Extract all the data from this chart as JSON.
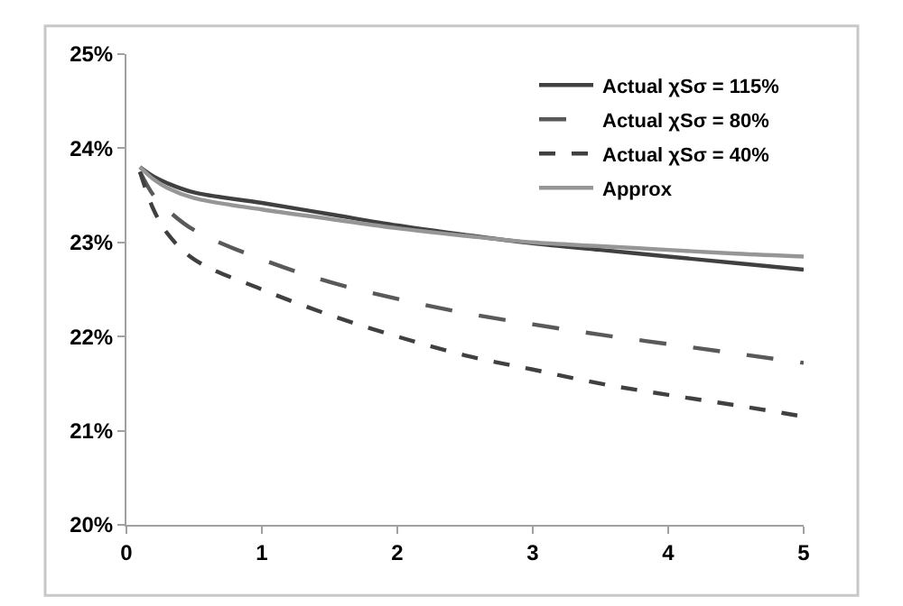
{
  "chart_data": {
    "type": "line",
    "x": [
      0.1,
      0.2,
      0.3,
      0.5,
      1,
      1.5,
      2,
      2.5,
      3,
      3.5,
      4,
      4.5,
      5
    ],
    "series": [
      {
        "name": "Actual χSσ = 115%",
        "color": "#404040",
        "line_style": "solid",
        "values": [
          23.8,
          23.7,
          23.63,
          23.53,
          23.42,
          23.3,
          23.18,
          23.08,
          22.99,
          22.92,
          22.85,
          22.78,
          22.71
        ]
      },
      {
        "name": "Actual χSσ = 80%",
        "color": "#595959",
        "line_style": "longdash",
        "values": [
          23.75,
          23.5,
          23.35,
          23.13,
          22.82,
          22.58,
          22.4,
          22.25,
          22.13,
          22.02,
          21.92,
          21.82,
          21.72
        ]
      },
      {
        "name": "Actual χSσ = 40%",
        "color": "#404040",
        "line_style": "dashed",
        "values": [
          23.75,
          23.35,
          23.1,
          22.82,
          22.5,
          22.23,
          22.0,
          21.8,
          21.65,
          21.5,
          21.38,
          21.27,
          21.15
        ]
      },
      {
        "name": "Approx",
        "color": "#969696",
        "line_style": "solid",
        "values": [
          23.8,
          23.67,
          23.58,
          23.47,
          23.35,
          23.25,
          23.15,
          23.07,
          23.0,
          22.96,
          22.92,
          22.88,
          22.85
        ]
      }
    ],
    "xlim": [
      0,
      5
    ],
    "xticks": [
      0,
      1,
      2,
      3,
      4,
      5
    ],
    "ylim": [
      20,
      25
    ],
    "yticks": [
      {
        "value": 20,
        "label": "20%"
      },
      {
        "value": 21,
        "label": "21%"
      },
      {
        "value": 22,
        "label": "22%"
      },
      {
        "value": 23,
        "label": "23%"
      },
      {
        "value": 24,
        "label": "24%"
      },
      {
        "value": 25,
        "label": "25%"
      }
    ],
    "legend": "top right",
    "marker": "none"
  }
}
